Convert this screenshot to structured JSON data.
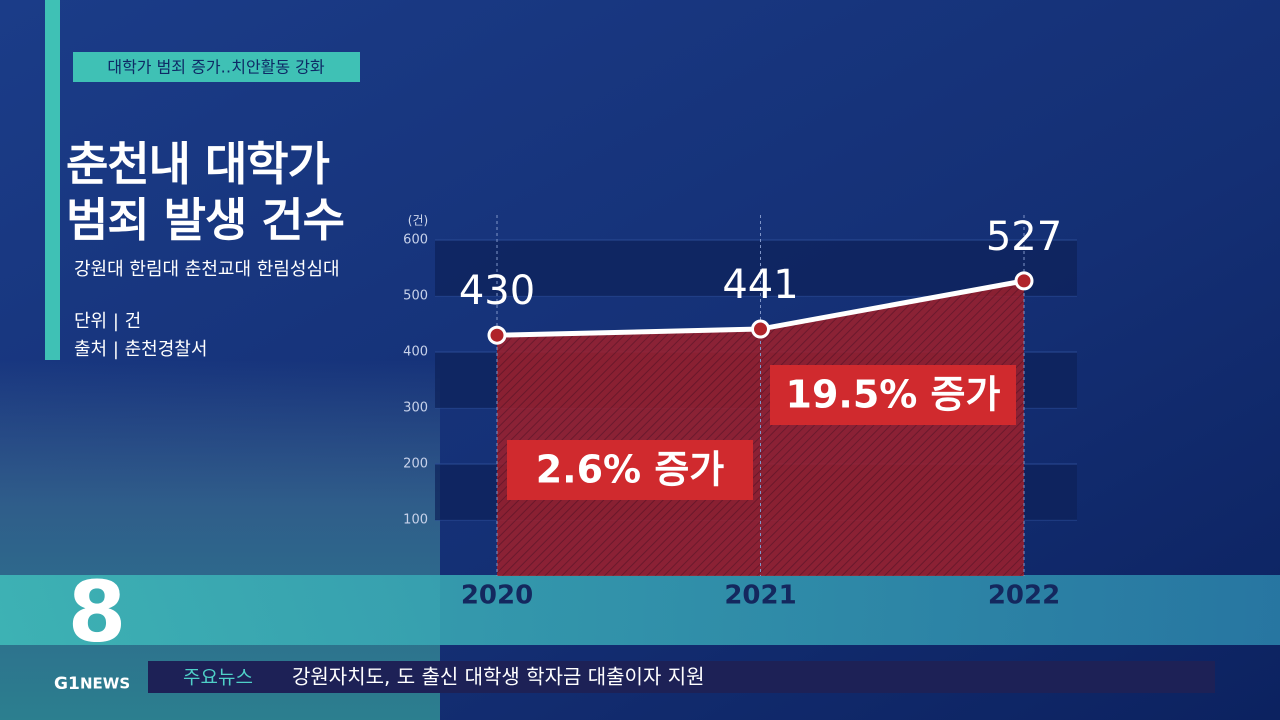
{
  "chart_data": {
    "type": "line",
    "title": "춘천내 대학가\n범죄 발생 건수",
    "subtitle": "강원대 한림대 춘천교대 한림성심대",
    "notes": [
      "단위 | 건",
      "출처 | 춘천경찰서"
    ],
    "y_unit": "(건)",
    "categories": [
      "2020",
      "2021",
      "2022"
    ],
    "values": [
      430,
      441,
      527
    ],
    "annotations": [
      "2.6% 증가",
      "19.5% 증가"
    ],
    "color": "#ffffff",
    "area_color": "#c0262c",
    "ylim": [
      0,
      600
    ],
    "yticks": [
      100,
      200,
      300,
      400,
      500,
      600
    ],
    "grid": true
  },
  "header": {
    "tag": "대학가 범죄 증가‥치안활동 강화"
  },
  "logo": {
    "channel": "G1",
    "brand": "NEWS"
  },
  "ticker": {
    "label": "주요뉴스",
    "text": "강원자치도, 도 출신 대학생 학자금 대출이자 지원"
  }
}
